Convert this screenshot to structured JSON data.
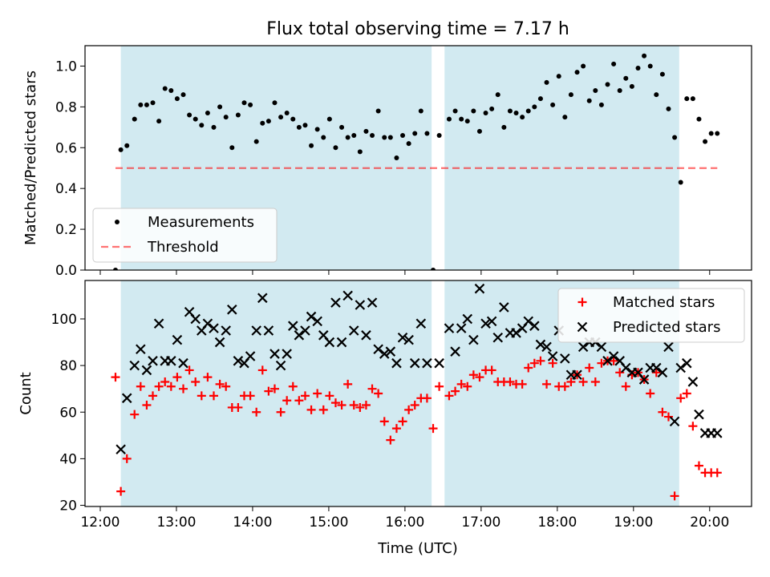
{
  "title": "Flux total observing time = 7.17 h",
  "colors": {
    "shade": "#add8e6",
    "threshold": "#ff0000",
    "measurement": "#000000",
    "matched": "#ff0000",
    "predicted": "#000000"
  },
  "chart_data": [
    {
      "type": "scatter",
      "ylabel": "Matched/Predicted stars",
      "xlim": [
        11.8,
        20.55
      ],
      "ylim": [
        0.0,
        1.1
      ],
      "yticks": [
        "0.0",
        "0.2",
        "0.4",
        "0.6",
        "0.8",
        "1.0"
      ],
      "grid": false,
      "legend_position": "lower-left",
      "shaded_intervals": [
        [
          12.27,
          16.35
        ],
        [
          16.52,
          19.6
        ]
      ],
      "threshold": {
        "name": "Threshold",
        "y": 0.5,
        "x": [
          12.2,
          20.1
        ]
      },
      "series": [
        {
          "name": "Measurements",
          "x": [
            12.2,
            12.27,
            12.35,
            12.45,
            12.53,
            12.61,
            12.69,
            12.77,
            12.85,
            12.93,
            13.01,
            13.09,
            13.17,
            13.25,
            13.33,
            13.41,
            13.49,
            13.57,
            13.65,
            13.73,
            13.81,
            13.89,
            13.97,
            14.05,
            14.13,
            14.21,
            14.29,
            14.37,
            14.45,
            14.53,
            14.61,
            14.69,
            14.77,
            14.85,
            14.93,
            15.01,
            15.09,
            15.17,
            15.25,
            15.33,
            15.41,
            15.49,
            15.57,
            15.65,
            15.73,
            15.81,
            15.89,
            15.97,
            16.05,
            16.13,
            16.21,
            16.29,
            16.37,
            16.45,
            16.58,
            16.66,
            16.74,
            16.82,
            16.9,
            16.98,
            17.06,
            17.14,
            17.22,
            17.3,
            17.38,
            17.46,
            17.54,
            17.62,
            17.7,
            17.78,
            17.86,
            17.94,
            18.02,
            18.1,
            18.18,
            18.26,
            18.34,
            18.42,
            18.5,
            18.58,
            18.66,
            18.74,
            18.82,
            18.9,
            18.98,
            19.06,
            19.14,
            19.22,
            19.3,
            19.38,
            19.46,
            19.54,
            19.62,
            19.7,
            19.78,
            19.86,
            19.94,
            20.02,
            20.1
          ],
          "y": [
            0.0,
            0.59,
            0.61,
            0.74,
            0.81,
            0.81,
            0.82,
            0.73,
            0.89,
            0.88,
            0.84,
            0.86,
            0.76,
            0.74,
            0.71,
            0.77,
            0.7,
            0.8,
            0.75,
            0.6,
            0.76,
            0.82,
            0.81,
            0.63,
            0.72,
            0.73,
            0.82,
            0.75,
            0.77,
            0.74,
            0.7,
            0.71,
            0.61,
            0.69,
            0.65,
            0.74,
            0.6,
            0.7,
            0.65,
            0.66,
            0.58,
            0.68,
            0.66,
            0.78,
            0.65,
            0.65,
            0.55,
            0.66,
            0.62,
            0.67,
            0.78,
            0.67,
            0.0,
            0.66,
            0.74,
            0.78,
            0.74,
            0.73,
            0.78,
            0.68,
            0.77,
            0.79,
            0.86,
            0.7,
            0.78,
            0.77,
            0.75,
            0.78,
            0.8,
            0.84,
            0.92,
            0.81,
            0.95,
            0.75,
            0.86,
            0.97,
            1.0,
            0.83,
            0.88,
            0.81,
            0.91,
            1.01,
            0.88,
            0.94,
            0.9,
            0.99,
            1.05,
            1.0,
            0.86,
            0.96,
            0.79,
            0.65,
            0.43,
            0.84,
            0.84,
            0.74,
            0.63,
            0.67,
            0.67
          ]
        }
      ]
    },
    {
      "type": "scatter",
      "xlabel": "Time (UTC)",
      "ylabel": "Count",
      "xlim": [
        11.8,
        20.55
      ],
      "ylim": [
        19.5,
        116.5
      ],
      "yticks": [
        "20",
        "40",
        "60",
        "80",
        "100"
      ],
      "xticks": [
        "12:00",
        "13:00",
        "14:00",
        "15:00",
        "16:00",
        "17:00",
        "18:00",
        "19:00",
        "20:00"
      ],
      "grid": false,
      "legend_position": "top-right",
      "shaded_intervals": [
        [
          12.27,
          16.35
        ],
        [
          16.52,
          19.6
        ]
      ],
      "series": [
        {
          "name": "Matched stars",
          "x": [
            12.2,
            12.27,
            12.35,
            12.45,
            12.53,
            12.61,
            12.69,
            12.77,
            12.85,
            12.93,
            13.01,
            13.09,
            13.17,
            13.25,
            13.33,
            13.41,
            13.49,
            13.57,
            13.65,
            13.73,
            13.81,
            13.89,
            13.97,
            14.05,
            14.13,
            14.21,
            14.29,
            14.37,
            14.45,
            14.53,
            14.61,
            14.69,
            14.77,
            14.85,
            14.93,
            15.01,
            15.09,
            15.17,
            15.25,
            15.33,
            15.41,
            15.49,
            15.57,
            15.65,
            15.73,
            15.81,
            15.89,
            15.97,
            16.05,
            16.13,
            16.21,
            16.29,
            16.37,
            16.45,
            16.58,
            16.66,
            16.74,
            16.82,
            16.9,
            16.98,
            17.06,
            17.14,
            17.22,
            17.3,
            17.38,
            17.46,
            17.54,
            17.62,
            17.7,
            17.78,
            17.86,
            17.94,
            18.02,
            18.1,
            18.18,
            18.26,
            18.34,
            18.42,
            18.5,
            18.58,
            18.66,
            18.74,
            18.82,
            18.9,
            18.98,
            19.06,
            19.14,
            19.22,
            19.3,
            19.38,
            19.46,
            19.54,
            19.62,
            19.7,
            19.78,
            19.86,
            19.94,
            20.02,
            20.1
          ],
          "y": [
            75,
            26,
            40,
            59,
            71,
            63,
            67,
            71,
            73,
            71,
            75,
            70,
            78,
            73,
            67,
            75,
            67,
            72,
            71,
            62,
            62,
            67,
            67,
            60,
            78,
            69,
            70,
            60,
            65,
            71,
            65,
            67,
            61,
            68,
            61,
            67,
            64,
            63,
            72,
            63,
            62,
            63,
            70,
            68,
            56,
            48,
            53,
            56,
            61,
            63,
            66,
            66,
            53,
            71,
            67,
            69,
            72,
            71,
            76,
            75,
            78,
            78,
            73,
            73,
            73,
            72,
            72,
            79,
            81,
            82,
            72,
            81,
            71,
            71,
            73,
            76,
            73,
            79,
            73,
            81,
            82,
            82,
            77,
            71,
            76,
            77,
            74,
            68,
            77,
            60,
            58,
            24,
            66,
            68,
            54,
            37,
            34,
            34,
            34
          ]
        },
        {
          "name": "Predicted stars",
          "x": [
            12.27,
            12.35,
            12.45,
            12.53,
            12.61,
            12.69,
            12.77,
            12.85,
            12.93,
            13.01,
            13.09,
            13.17,
            13.25,
            13.33,
            13.41,
            13.49,
            13.57,
            13.65,
            13.73,
            13.81,
            13.89,
            13.97,
            14.05,
            14.13,
            14.21,
            14.29,
            14.37,
            14.45,
            14.53,
            14.61,
            14.69,
            14.77,
            14.85,
            14.93,
            15.01,
            15.09,
            15.17,
            15.25,
            15.33,
            15.41,
            15.49,
            15.57,
            15.65,
            15.73,
            15.81,
            15.89,
            15.97,
            16.05,
            16.13,
            16.21,
            16.29,
            16.45,
            16.58,
            16.66,
            16.74,
            16.82,
            16.9,
            16.98,
            17.06,
            17.14,
            17.22,
            17.3,
            17.38,
            17.46,
            17.54,
            17.62,
            17.7,
            17.78,
            17.86,
            17.94,
            18.02,
            18.1,
            18.18,
            18.26,
            18.34,
            18.42,
            18.5,
            18.58,
            18.66,
            18.74,
            18.82,
            18.9,
            18.98,
            19.06,
            19.14,
            19.22,
            19.3,
            19.38,
            19.46,
            19.54,
            19.62,
            19.7,
            19.78,
            19.86,
            19.94,
            20.02,
            20.1
          ],
          "y": [
            44,
            66,
            80,
            87,
            78,
            82,
            98,
            82,
            82,
            91,
            81,
            103,
            100,
            95,
            98,
            96,
            90,
            95,
            104,
            82,
            81,
            84,
            95,
            109,
            95,
            85,
            80,
            85,
            97,
            93,
            95,
            101,
            99,
            93,
            90,
            107,
            90,
            110,
            95,
            106,
            93,
            107,
            87,
            85,
            86,
            81,
            92,
            91,
            81,
            98,
            81,
            81,
            96,
            86,
            96,
            100,
            91,
            113,
            98,
            99,
            92,
            105,
            94,
            94,
            96,
            99,
            97,
            89,
            88,
            84,
            95,
            83,
            76,
            76,
            88,
            90,
            90,
            88,
            82,
            84,
            82,
            79,
            77,
            77,
            74,
            79,
            79,
            77,
            88,
            56,
            79,
            81,
            73,
            59,
            51,
            51,
            51
          ]
        }
      ]
    }
  ]
}
